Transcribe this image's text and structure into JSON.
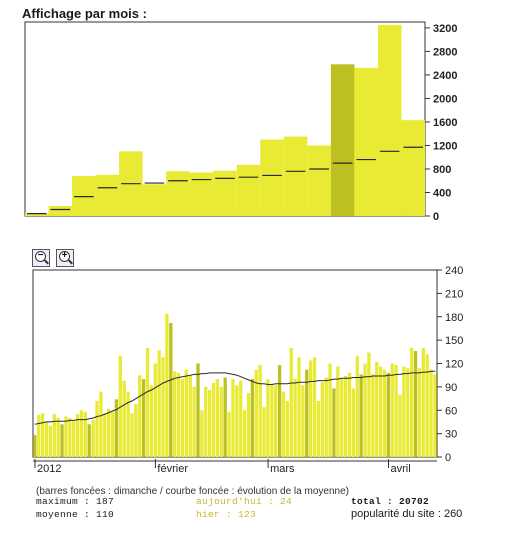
{
  "page": {
    "title": "Affichage par mois :"
  },
  "chart_data": [
    {
      "type": "bar",
      "description_text": "",
      "yticks": [
        "0",
        "400",
        "800",
        "1200",
        "1600",
        "2000",
        "2400",
        "2800",
        "3200"
      ],
      "ylim": [
        0,
        3300
      ],
      "bars": [
        40,
        170,
        680,
        700,
        1100,
        540,
        760,
        740,
        770,
        870,
        1300,
        1350,
        1200,
        2580,
        2520,
        3250,
        1630
      ],
      "moyenne": [
        40,
        110,
        330,
        480,
        550,
        560,
        600,
        620,
        640,
        660,
        690,
        760,
        800,
        900,
        960,
        1100,
        1170
      ]
    },
    {
      "type": "bar",
      "yticks": [
        "0",
        "30",
        "60",
        "90",
        "120",
        "150",
        "180",
        "210",
        "240"
      ],
      "ylim": [
        0,
        240
      ],
      "xticks": [
        "2012",
        "février",
        "mars",
        "avril"
      ],
      "xtick_index": [
        0,
        31,
        60,
        91
      ],
      "bars": [
        28,
        54,
        56,
        45,
        40,
        55,
        50,
        42,
        52,
        50,
        46,
        55,
        60,
        58,
        42,
        48,
        72,
        84,
        56,
        62,
        58,
        74,
        130,
        98,
        84,
        56,
        68,
        105,
        100,
        140,
        92,
        120,
        137,
        128,
        184,
        172,
        110,
        108,
        100,
        112,
        104,
        90,
        120,
        60,
        90,
        86,
        95,
        100,
        90,
        102,
        58,
        100,
        92,
        98,
        60,
        82,
        100,
        112,
        118,
        64,
        100,
        94,
        92,
        118,
        84,
        72,
        140,
        100,
        128,
        92,
        112,
        124,
        128,
        72,
        96,
        102,
        120,
        88,
        116,
        100,
        104,
        108,
        88,
        130,
        106,
        120,
        134,
        106,
        122,
        116,
        112,
        108,
        120,
        118,
        80,
        116,
        114,
        140,
        136,
        114,
        140,
        132,
        112,
        106
      ],
      "moyenne": [
        42,
        43,
        44,
        45,
        45,
        46,
        46,
        46,
        46,
        47,
        47,
        48,
        48,
        48,
        49,
        50,
        52,
        53,
        55,
        57,
        59,
        61,
        64,
        67,
        70,
        72,
        75,
        78,
        81,
        84,
        86,
        89,
        92,
        95,
        97,
        99,
        101,
        102,
        103,
        104,
        105,
        106,
        106,
        107,
        107,
        108,
        108,
        108,
        108,
        108,
        107,
        106,
        105,
        103,
        101,
        99,
        97,
        95,
        94,
        94,
        93,
        93,
        94,
        94,
        94,
        94,
        95,
        95,
        96,
        96,
        96,
        97,
        97,
        98,
        98,
        98,
        99,
        100,
        100,
        101,
        101,
        101,
        102,
        102,
        102,
        103,
        103,
        104,
        104,
        104,
        104,
        105,
        105,
        106,
        106,
        107,
        107,
        108,
        108,
        108,
        109,
        109,
        110,
        110
      ]
    }
  ],
  "legend": {
    "text": "(barres foncées : dimanche / courbe foncée : évolution de la moyenne)"
  },
  "stats": {
    "maximum": "maximum : 187",
    "moyenne": "moyenne : 110",
    "aujourdhui": "aujourd'hui : 24",
    "hier": "hier : 123",
    "total": "total : 20702",
    "popularite": "popularité du site : 260"
  },
  "colors": {
    "bar": "#e8ea34",
    "bar_dark": "#bcc020",
    "line": "#2a2a2a",
    "frame": "#333333"
  }
}
